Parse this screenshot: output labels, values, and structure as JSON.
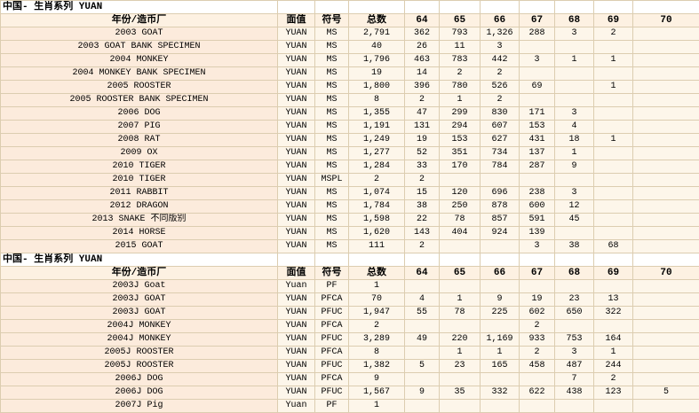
{
  "sections": [
    {
      "title": "中国- 生肖系列 YUAN",
      "header": [
        "年份/造币厂",
        "面值",
        "符号",
        "总数",
        "64",
        "65",
        "66",
        "67",
        "68",
        "69",
        "70"
      ],
      "rows": [
        [
          "2003 GOAT",
          "YUAN",
          "MS",
          "2,791",
          "362",
          "793",
          "1,326",
          "288",
          "3",
          "2",
          null
        ],
        [
          "2003 GOAT BANK SPECIMEN",
          "YUAN",
          "MS",
          "40",
          "26",
          "11",
          "3",
          null,
          null,
          null,
          null
        ],
        [
          "2004 MONKEY",
          "YUAN",
          "MS",
          "1,796",
          "463",
          "783",
          "442",
          "3",
          "1",
          "1",
          null
        ],
        [
          "2004 MONKEY BANK SPECIMEN",
          "YUAN",
          "MS",
          "19",
          "14",
          "2",
          "2",
          null,
          null,
          null,
          null
        ],
        [
          "2005 ROOSTER",
          "YUAN",
          "MS",
          "1,800",
          "396",
          "780",
          "526",
          "69",
          null,
          "1",
          null
        ],
        [
          "2005 ROOSTER BANK SPECIMEN",
          "YUAN",
          "MS",
          "8",
          "2",
          "1",
          "2",
          null,
          null,
          null,
          null
        ],
        [
          "2006 DOG",
          "YUAN",
          "MS",
          "1,355",
          "47",
          "299",
          "830",
          "171",
          "3",
          null,
          null
        ],
        [
          "2007 PIG",
          "YUAN",
          "MS",
          "1,191",
          "131",
          "294",
          "607",
          "153",
          "4",
          null,
          null
        ],
        [
          "2008 RAT",
          "YUAN",
          "MS",
          "1,249",
          "19",
          "153",
          "627",
          "431",
          "18",
          "1",
          null
        ],
        [
          "2009 OX",
          "YUAN",
          "MS",
          "1,277",
          "52",
          "351",
          "734",
          "137",
          "1",
          null,
          null
        ],
        [
          "2010 TIGER",
          "YUAN",
          "MS",
          "1,284",
          "33",
          "170",
          "784",
          "287",
          "9",
          null,
          null
        ],
        [
          "2010 TIGER",
          "YUAN",
          "MSPL",
          "2",
          "2",
          null,
          null,
          null,
          null,
          null,
          null
        ],
        [
          "2011 RABBIT",
          "YUAN",
          "MS",
          "1,074",
          "15",
          "120",
          "696",
          "238",
          "3",
          null,
          null
        ],
        [
          "2012 DRAGON",
          "YUAN",
          "MS",
          "1,784",
          "38",
          "250",
          "878",
          "600",
          "12",
          null,
          null
        ],
        [
          "2013 SNAKE 不同版别",
          "YUAN",
          "MS",
          "1,598",
          "22",
          "78",
          "857",
          "591",
          "45",
          null,
          null
        ],
        [
          "2014 HORSE",
          "YUAN",
          "MS",
          "1,620",
          "143",
          "404",
          "924",
          "139",
          null,
          null,
          null
        ],
        [
          "2015 GOAT",
          "YUAN",
          "MS",
          "111",
          "2",
          null,
          null,
          "3",
          "38",
          "68",
          null
        ]
      ]
    },
    {
      "title": "中国- 生肖系列 YUAN",
      "header": [
        "年份/造币厂",
        "面值",
        "符号",
        "总数",
        "64",
        "65",
        "66",
        "67",
        "68",
        "69",
        "70"
      ],
      "rows": [
        [
          "2003J Goat",
          "Yuan",
          "PF",
          "1",
          null,
          null,
          null,
          null,
          null,
          null,
          null
        ],
        [
          "2003J GOAT",
          "YUAN",
          "PFCA",
          "70",
          "4",
          "1",
          "9",
          "19",
          "23",
          "13",
          null
        ],
        [
          "2003J GOAT",
          "YUAN",
          "PFUC",
          "1,947",
          "55",
          "78",
          "225",
          "602",
          "650",
          "322",
          null
        ],
        [
          "2004J MONKEY",
          "YUAN",
          "PFCA",
          "2",
          null,
          null,
          null,
          "2",
          null,
          null,
          null
        ],
        [
          "2004J MONKEY",
          "YUAN",
          "PFUC",
          "3,289",
          "49",
          "220",
          "1,169",
          "933",
          "753",
          "164",
          null
        ],
        [
          "2005J ROOSTER",
          "YUAN",
          "PFCA",
          "8",
          null,
          "1",
          "1",
          "2",
          "3",
          "1",
          null
        ],
        [
          "2005J ROOSTER",
          "YUAN",
          "PFUC",
          "1,382",
          "5",
          "23",
          "165",
          "458",
          "487",
          "244",
          null
        ],
        [
          "2006J DOG",
          "YUAN",
          "PFCA",
          "9",
          null,
          null,
          null,
          null,
          "7",
          "2",
          null
        ],
        [
          "2006J DOG",
          "YUAN",
          "PFUC",
          "1,567",
          "9",
          "35",
          "332",
          "622",
          "438",
          "123",
          "5"
        ],
        [
          "2007J Pig",
          "Yuan",
          "PF",
          "1",
          null,
          null,
          null,
          null,
          null,
          null,
          null
        ]
      ]
    }
  ]
}
